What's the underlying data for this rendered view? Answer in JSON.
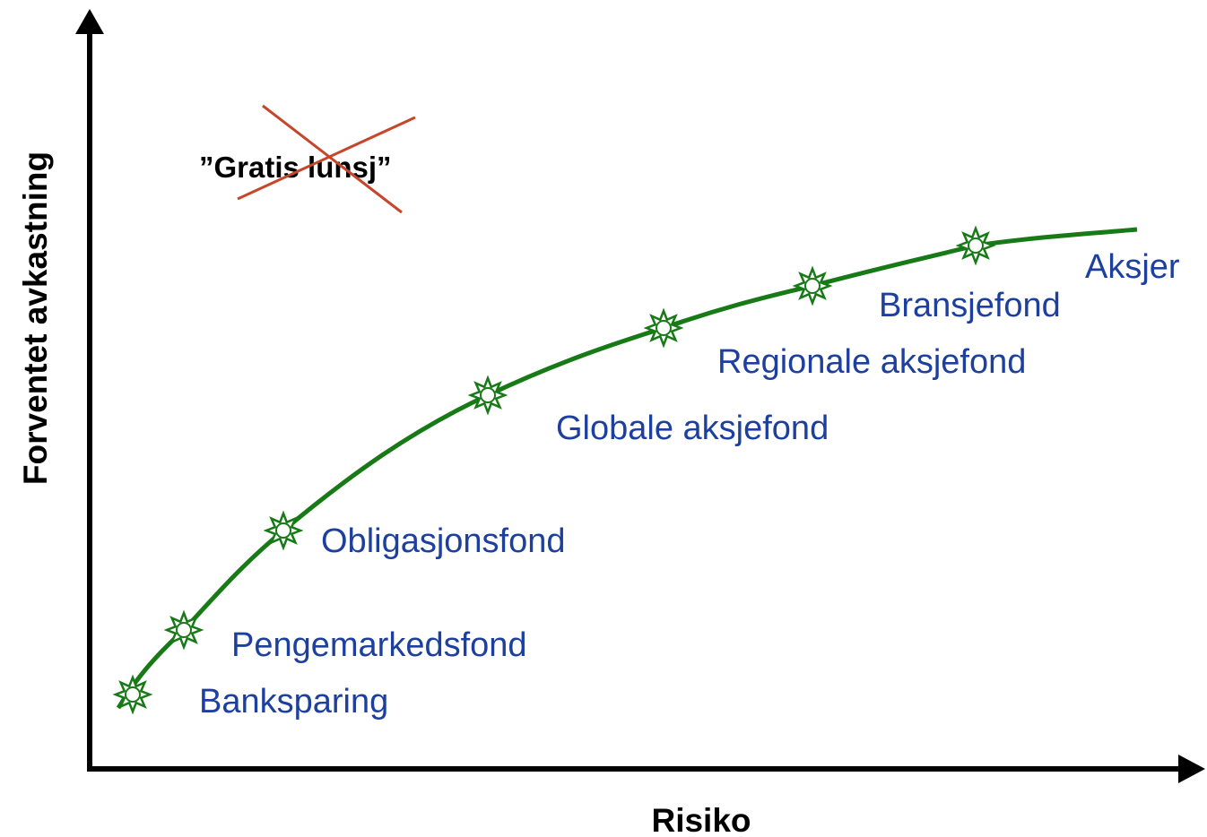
{
  "axes": {
    "x_label": "Risiko",
    "y_label": "Forventet avkastning"
  },
  "annotation": "”Gratis lunsj”",
  "nodes": [
    {
      "label": "Banksparing"
    },
    {
      "label": "Pengemarkedsfond"
    },
    {
      "label": "Obligasjonsfond"
    },
    {
      "label": "Globale aksjefond"
    },
    {
      "label": "Regionale aksjefond"
    },
    {
      "label": "Bransjefond"
    },
    {
      "label": "Aksjer"
    }
  ]
}
